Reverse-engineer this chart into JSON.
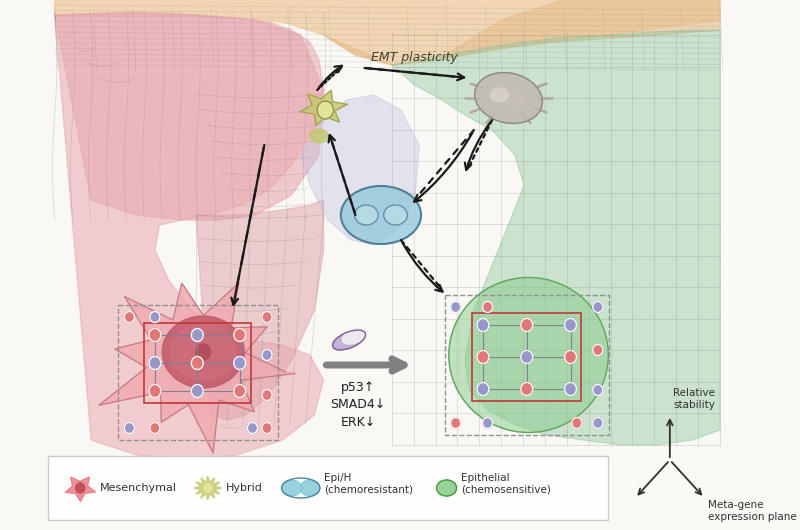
{
  "bg_color": "#faf8f4",
  "emt_plasticity_text": "EMT plasticity",
  "p53_text": "p53↑",
  "smad4_text": "SMAD4↓",
  "erk_text": "ERK↓",
  "axis_label1": "Relative\nstability",
  "axis_label2": "Meta-gene\nexpression plane",
  "pink_color": "#e8a0a8",
  "green_color": "#90c8a8",
  "orange_color": "#f0c898",
  "teal_color": "#a8d8d0",
  "grid_color": "#909090",
  "grid_alpha": 0.35,
  "node_pink": "#e07878",
  "node_blue": "#9898c8",
  "arrow_color": "#1a1a1a"
}
